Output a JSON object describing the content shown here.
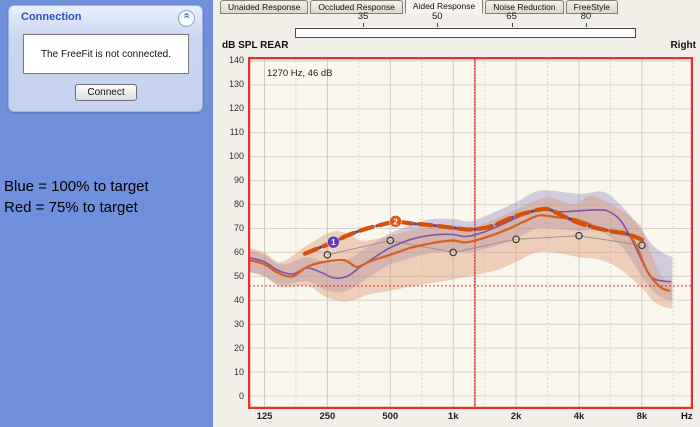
{
  "left_panel": {
    "connection": {
      "title": "Connection",
      "message": "The FreeFit is not connected.",
      "connect_label": "Connect",
      "collapse_icon": "chevron-double-up"
    },
    "legend_line1": "Blue = 100% to target",
    "legend_line2": "Red = 75% to target"
  },
  "tabs": [
    {
      "label": "Unaided Response",
      "active": false
    },
    {
      "label": "Occluded Response",
      "active": false
    },
    {
      "label": "Aided Response",
      "active": true
    },
    {
      "label": "Noise Reduction",
      "active": false
    },
    {
      "label": "FreeStyle",
      "active": false
    }
  ],
  "level_slider": {
    "tick_labels": [
      "35",
      "50",
      "65",
      "80"
    ]
  },
  "chart_header": {
    "left_label": "dB SPL REAR",
    "right_label": "Right"
  },
  "chart_data": {
    "type": "line",
    "title": "Aided Response (REAR)",
    "xlabel": "Hz",
    "ylabel": "dB SPL",
    "x_scale": "log",
    "grid": true,
    "background": "#faf7ee",
    "border_color": "#e8312f",
    "xlim_hz": [
      104.2,
      14050
    ],
    "ylim_db": [
      -5.43,
      141.67
    ],
    "x_ticks": [
      {
        "label": "125",
        "hz": 125
      },
      {
        "label": "250",
        "hz": 250
      },
      {
        "label": "500",
        "hz": 500
      },
      {
        "label": "1k",
        "hz": 1000
      },
      {
        "label": "2k",
        "hz": 2000
      },
      {
        "label": "4k",
        "hz": 4000
      },
      {
        "label": "8k",
        "hz": 8000
      }
    ],
    "y_ticks": [
      140,
      130,
      120,
      110,
      100,
      90,
      80,
      70,
      60,
      50,
      40,
      30,
      20,
      10,
      0
    ],
    "cursor": {
      "freq_hz": 1270,
      "db": 46,
      "label": "1270 Hz, 46 dB",
      "color": "#d83030"
    },
    "bands": [
      {
        "name": "tolerance-band-100",
        "color": "#928cc4",
        "opacity": 0.4,
        "top": [
          [
            104,
            61
          ],
          [
            125,
            59
          ],
          [
            150,
            55
          ],
          [
            200,
            58
          ],
          [
            250,
            56
          ],
          [
            310,
            57
          ],
          [
            400,
            63
          ],
          [
            500,
            68
          ],
          [
            650,
            72
          ],
          [
            800,
            74
          ],
          [
            1000,
            74
          ],
          [
            1200,
            73
          ],
          [
            1500,
            76
          ],
          [
            2000,
            81
          ],
          [
            2500,
            85.5
          ],
          [
            3000,
            85.8
          ],
          [
            3500,
            85
          ],
          [
            4200,
            84.5
          ],
          [
            5000,
            85.5
          ],
          [
            5600,
            84
          ],
          [
            6300,
            80
          ],
          [
            7100,
            75
          ],
          [
            8000,
            69
          ],
          [
            9000,
            63
          ],
          [
            10000,
            60
          ],
          [
            11200,
            58
          ]
        ],
        "bottom": [
          [
            104,
            52
          ],
          [
            125,
            50
          ],
          [
            150,
            46.5
          ],
          [
            200,
            48
          ],
          [
            250,
            44
          ],
          [
            310,
            44
          ],
          [
            400,
            50
          ],
          [
            500,
            55
          ],
          [
            650,
            58
          ],
          [
            800,
            60
          ],
          [
            1000,
            60.5
          ],
          [
            1200,
            60
          ],
          [
            1500,
            62
          ],
          [
            2000,
            66
          ],
          [
            2500,
            70
          ],
          [
            3000,
            70
          ],
          [
            4000,
            69
          ],
          [
            5000,
            69
          ],
          [
            6300,
            63
          ],
          [
            7100,
            57
          ],
          [
            8000,
            50
          ],
          [
            9000,
            44
          ],
          [
            10000,
            41
          ],
          [
            11200,
            40
          ]
        ]
      },
      {
        "name": "tolerance-band-75",
        "color": "#db9670",
        "opacity": 0.42,
        "top": [
          [
            104,
            62
          ],
          [
            125,
            60
          ],
          [
            150,
            56
          ],
          [
            200,
            63
          ],
          [
            260,
            68.5
          ],
          [
            310,
            68
          ],
          [
            360,
            65
          ],
          [
            450,
            66
          ],
          [
            550,
            68
          ],
          [
            700,
            70
          ],
          [
            900,
            71
          ],
          [
            1100,
            70
          ],
          [
            1400,
            72
          ],
          [
            1800,
            76
          ],
          [
            2300,
            80.5
          ],
          [
            2800,
            83
          ],
          [
            3200,
            82
          ],
          [
            3800,
            80
          ],
          [
            4500,
            83.5
          ],
          [
            5200,
            82
          ],
          [
            6300,
            78
          ],
          [
            7100,
            74.5
          ],
          [
            8000,
            70
          ],
          [
            9000,
            58
          ],
          [
            10000,
            50
          ],
          [
            11200,
            47
          ]
        ],
        "bottom": [
          [
            104,
            52
          ],
          [
            125,
            50
          ],
          [
            150,
            45.5
          ],
          [
            200,
            46
          ],
          [
            250,
            41
          ],
          [
            310,
            39.5
          ],
          [
            400,
            42.5
          ],
          [
            500,
            44
          ],
          [
            650,
            46
          ],
          [
            900,
            48
          ],
          [
            1200,
            50
          ],
          [
            1600,
            52.5
          ],
          [
            2000,
            56
          ],
          [
            2500,
            60
          ],
          [
            3000,
            60
          ],
          [
            4000,
            58
          ],
          [
            5000,
            57
          ],
          [
            6300,
            53
          ],
          [
            8000,
            45
          ],
          [
            9000,
            40
          ],
          [
            10000,
            37.5
          ],
          [
            11200,
            36.5
          ]
        ]
      }
    ],
    "target_series": {
      "name": "target-points",
      "line_color": "#9a948a",
      "marker": "open-circle",
      "marker_color": "#3a3a3a",
      "points": [
        [
          250,
          59
        ],
        [
          500,
          65
        ],
        [
          1000,
          60
        ],
        [
          2000,
          65.5
        ],
        [
          4000,
          67
        ],
        [
          8000,
          63
        ]
      ]
    },
    "series": [
      {
        "name": "measured-response-100",
        "color": "#7d56a8",
        "width": 1.6,
        "dash": null,
        "points": [
          [
            104,
            58
          ],
          [
            125,
            56
          ],
          [
            145,
            52.5
          ],
          [
            170,
            51
          ],
          [
            200,
            53.5
          ],
          [
            235,
            51.5
          ],
          [
            270,
            49.3
          ],
          [
            310,
            50
          ],
          [
            360,
            54
          ],
          [
            430,
            58.5
          ],
          [
            500,
            62
          ],
          [
            630,
            65.5
          ],
          [
            800,
            67.3
          ],
          [
            1000,
            67.5
          ],
          [
            1150,
            66.6
          ],
          [
            1400,
            68.5
          ],
          [
            1800,
            72.5
          ],
          [
            2200,
            76
          ],
          [
            2600,
            78
          ],
          [
            3200,
            77
          ],
          [
            4000,
            77.4
          ],
          [
            5000,
            77.8
          ],
          [
            5600,
            77
          ],
          [
            6300,
            73.5
          ],
          [
            7100,
            66
          ],
          [
            8000,
            56.5
          ],
          [
            8800,
            50
          ],
          [
            9800,
            48.2
          ],
          [
            11000,
            47.8
          ]
        ]
      },
      {
        "name": "measured-response-75",
        "color": "#d95f1e",
        "width": 2.2,
        "dash": null,
        "points": [
          [
            104,
            57
          ],
          [
            125,
            55
          ],
          [
            145,
            51.5
          ],
          [
            170,
            50
          ],
          [
            200,
            54
          ],
          [
            240,
            56
          ],
          [
            300,
            56.8
          ],
          [
            345,
            54
          ],
          [
            400,
            56.3
          ],
          [
            500,
            59
          ],
          [
            630,
            62
          ],
          [
            800,
            64
          ],
          [
            1000,
            65
          ],
          [
            1150,
            64.2
          ],
          [
            1400,
            66
          ],
          [
            1800,
            69.5
          ],
          [
            2200,
            73
          ],
          [
            2600,
            75.5
          ],
          [
            3200,
            74.6
          ],
          [
            3800,
            74
          ],
          [
            4300,
            72.5
          ],
          [
            5000,
            70
          ],
          [
            6000,
            68.8
          ],
          [
            6800,
            68
          ],
          [
            7600,
            62
          ],
          [
            8500,
            52
          ],
          [
            9800,
            45.5
          ],
          [
            10800,
            44
          ]
        ]
      },
      {
        "name": "fitted-target-100-dashed",
        "color": "#4f46a0",
        "width": 2.8,
        "dash": "7 4",
        "points": [
          [
            195,
            59.5
          ],
          [
            230,
            62
          ],
          [
            267,
            64.3
          ],
          [
            310,
            67
          ],
          [
            370,
            69.5
          ],
          [
            440,
            71.3
          ],
          [
            530,
            72.7
          ],
          [
            650,
            72
          ],
          [
            800,
            71.3
          ],
          [
            1000,
            70.3
          ],
          [
            1200,
            69.6
          ],
          [
            1500,
            70.8
          ],
          [
            1900,
            74.5
          ],
          [
            2300,
            76.8
          ],
          [
            2800,
            78.2
          ],
          [
            3300,
            75.5
          ],
          [
            3700,
            73.5
          ],
          [
            4000,
            72.3
          ],
          [
            4700,
            70.5
          ],
          [
            5600,
            69
          ],
          [
            6500,
            68
          ],
          [
            7300,
            66.8
          ],
          [
            8000,
            65.3
          ]
        ]
      },
      {
        "name": "fitted-target-75-dashed",
        "color": "#d4500a",
        "width": 4.2,
        "dash": "13 7",
        "points": [
          [
            195,
            59.5
          ],
          [
            230,
            62
          ],
          [
            267,
            64.3
          ],
          [
            310,
            67
          ],
          [
            370,
            69.5
          ],
          [
            440,
            71.3
          ],
          [
            530,
            72.7
          ],
          [
            650,
            72
          ],
          [
            800,
            71.3
          ],
          [
            1000,
            70.3
          ],
          [
            1200,
            69.6
          ],
          [
            1500,
            70.8
          ],
          [
            1900,
            74.5
          ],
          [
            2300,
            76.8
          ],
          [
            2800,
            78.2
          ],
          [
            3300,
            75.5
          ],
          [
            3700,
            73.5
          ],
          [
            4000,
            72.3
          ],
          [
            4700,
            70.5
          ],
          [
            5600,
            69
          ],
          [
            6500,
            68
          ],
          [
            7300,
            66.8
          ],
          [
            8000,
            65.3
          ]
        ]
      }
    ],
    "point_markers": [
      {
        "label": "1",
        "freq": 267,
        "db": 64.3,
        "color": "#5a3fae"
      },
      {
        "label": "2",
        "freq": 530,
        "db": 73,
        "color": "#dd5513"
      }
    ],
    "legend_position": "outside-left",
    "legend_entries": [
      "Blue = 100% to target",
      "Red = 75% to target"
    ]
  }
}
